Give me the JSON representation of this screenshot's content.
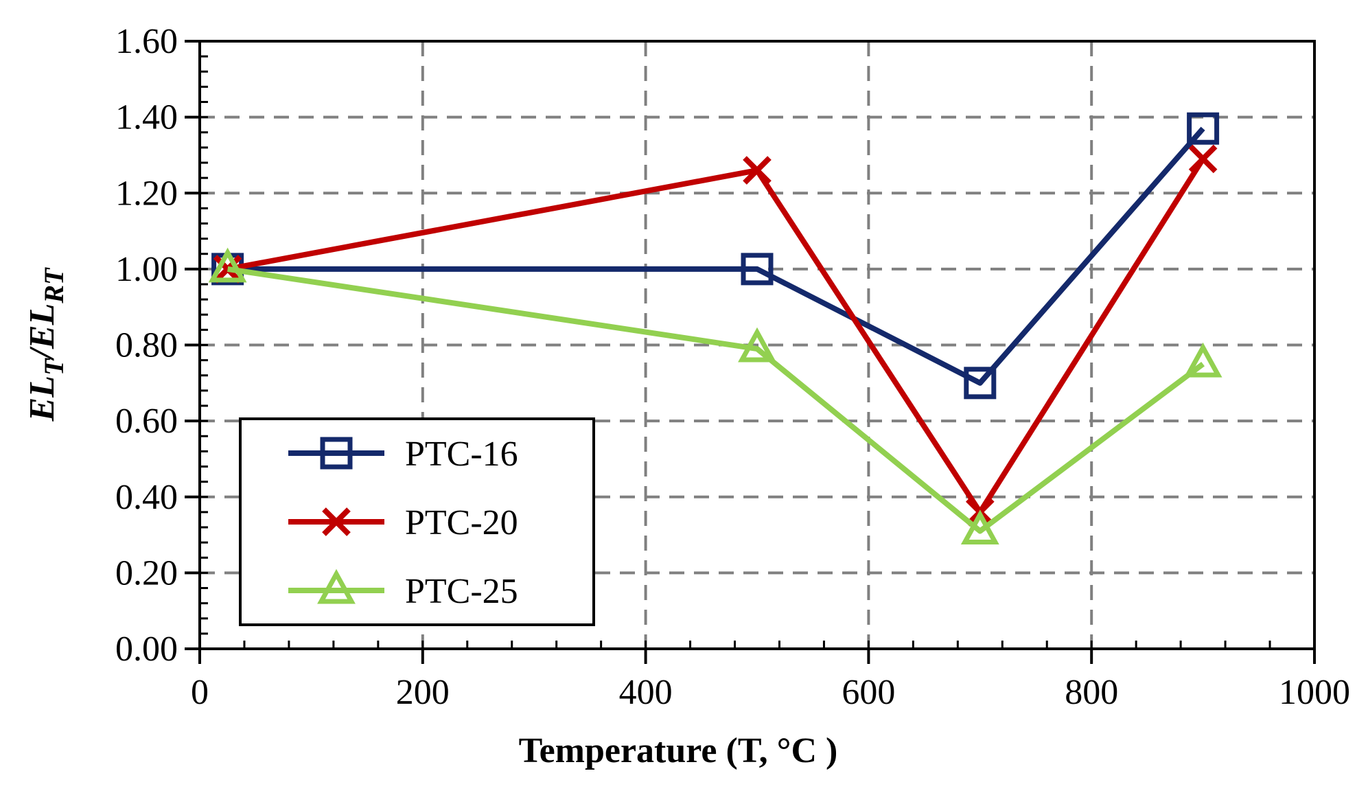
{
  "chart_data": {
    "type": "line",
    "title": "",
    "xlabel": "Temperature (T, °C )",
    "ylabel": {
      "main": "EL",
      "sub1": "T",
      "sep": "/EL",
      "sub2": "RT"
    },
    "xlim": [
      0,
      1000
    ],
    "ylim": [
      0.0,
      1.6
    ],
    "x_ticks": [
      "0",
      "200",
      "400",
      "600",
      "800",
      "1000"
    ],
    "x_tick_values": [
      0,
      200,
      400,
      600,
      800,
      1000
    ],
    "y_ticks": [
      "0.00",
      "0.20",
      "0.40",
      "0.60",
      "0.80",
      "1.00",
      "1.20",
      "1.40",
      "1.60"
    ],
    "y_tick_values": [
      0.0,
      0.2,
      0.4,
      0.6,
      0.8,
      1.0,
      1.2,
      1.4,
      1.6
    ],
    "grid": true,
    "grid_style": "dashed",
    "legend_position": "lower-left",
    "x": [
      25,
      500,
      700,
      900
    ],
    "series": [
      {
        "name": "PTC-16",
        "color": "#14296b",
        "marker": "square",
        "values": [
          1.0,
          1.0,
          0.7,
          1.37
        ]
      },
      {
        "name": "PTC-20",
        "color": "#c00000",
        "marker": "x",
        "values": [
          1.0,
          1.26,
          0.36,
          1.29
        ]
      },
      {
        "name": "PTC-25",
        "color": "#92d050",
        "marker": "triangle",
        "values": [
          1.0,
          0.79,
          0.31,
          0.75
        ]
      }
    ]
  }
}
